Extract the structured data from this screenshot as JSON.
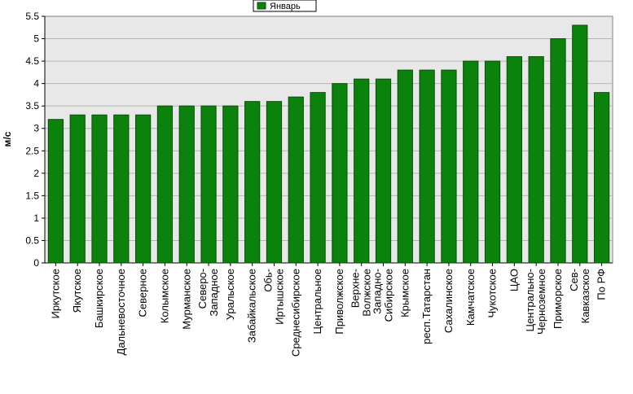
{
  "chart_data": {
    "type": "bar",
    "title": "",
    "xlabel": "",
    "ylabel": "м/с",
    "ylim": [
      0,
      5.5
    ],
    "yticks": [
      "0",
      "0.5",
      "1",
      "1.5",
      "2",
      "2.5",
      "3",
      "3.5",
      "4",
      "4.5",
      "5",
      "5.5"
    ],
    "grid": true,
    "legend_position": "top-center",
    "categories": [
      "Иркутское",
      "Якутское",
      "Башкирское",
      "Дальневосточное",
      "Северное",
      "Колымское",
      "Мурманское",
      "Северо-Западное",
      "Уральское",
      "Забайкальское",
      "Обь-Иртышское",
      "Среднесибирское",
      "Центральное",
      "Приволжское",
      "Верхне-Волжское",
      "Западно-Сибирское",
      "Крымское",
      "респ.Татарстан",
      "Сахалинское",
      "Камчатское",
      "Чукотское",
      "ЦАО",
      "Центрально-Черноземное",
      "Приморское",
      "Сев-Кавказское",
      "По РФ"
    ],
    "category_lines": [
      [
        "Иркутское"
      ],
      [
        "Якутское"
      ],
      [
        "Башкирское"
      ],
      [
        "Дальневосточное"
      ],
      [
        "Северное"
      ],
      [
        "Колымское"
      ],
      [
        "Мурманское"
      ],
      [
        "Северо-",
        "Западное"
      ],
      [
        "Уральское"
      ],
      [
        "Забайкальское"
      ],
      [
        "Обь-",
        "Иртышское"
      ],
      [
        "Среднесибирское"
      ],
      [
        "Центральное"
      ],
      [
        "Приволжское"
      ],
      [
        "Верхне-",
        "Волжское"
      ],
      [
        "Западно-",
        "Сибирское"
      ],
      [
        "Крымское"
      ],
      [
        "респ.Татарстан"
      ],
      [
        "Сахалинское"
      ],
      [
        "Камчатское"
      ],
      [
        "Чукотское"
      ],
      [
        "ЦАО"
      ],
      [
        "Центрально-",
        "Черноземное"
      ],
      [
        "Приморское"
      ],
      [
        "Сев-",
        "Кавказское"
      ],
      [
        "По РФ"
      ]
    ],
    "series": [
      {
        "name": "Январь",
        "color": "#0b820b",
        "values": [
          3.2,
          3.3,
          3.3,
          3.3,
          3.3,
          3.5,
          3.5,
          3.5,
          3.5,
          3.6,
          3.6,
          3.7,
          3.8,
          4.0,
          4.1,
          4.1,
          4.3,
          4.3,
          4.3,
          4.5,
          4.5,
          4.6,
          4.6,
          5.0,
          5.3,
          3.8
        ]
      }
    ],
    "colors": {
      "plot_background": "#e8e8e8",
      "gridline": "#b4b4b4",
      "axis": "#000000",
      "bar_edge": "#0a4d0a"
    }
  }
}
